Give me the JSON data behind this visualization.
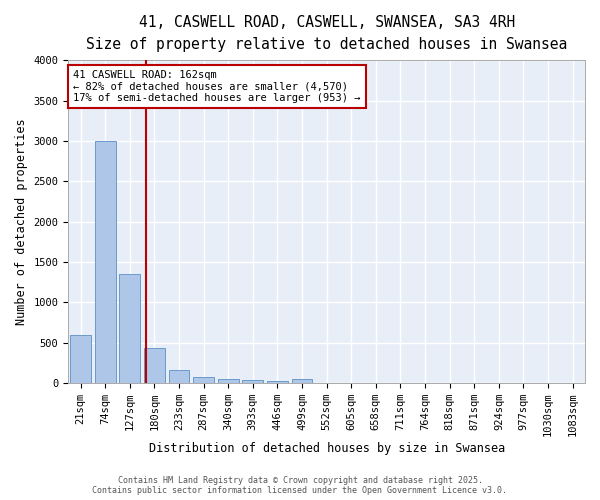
{
  "title1": "41, CASWELL ROAD, CASWELL, SWANSEA, SA3 4RH",
  "title2": "Size of property relative to detached houses in Swansea",
  "xlabel": "Distribution of detached houses by size in Swansea",
  "ylabel": "Number of detached properties",
  "categories": [
    "21sqm",
    "74sqm",
    "127sqm",
    "180sqm",
    "233sqm",
    "287sqm",
    "340sqm",
    "393sqm",
    "446sqm",
    "499sqm",
    "552sqm",
    "605sqm",
    "658sqm",
    "711sqm",
    "764sqm",
    "818sqm",
    "871sqm",
    "924sqm",
    "977sqm",
    "1030sqm",
    "1083sqm"
  ],
  "values": [
    600,
    3000,
    1350,
    430,
    155,
    75,
    45,
    35,
    30,
    50,
    0,
    0,
    0,
    0,
    0,
    0,
    0,
    0,
    0,
    0,
    0
  ],
  "bar_color": "#aec6e8",
  "bar_edge_color": "#5b8fc5",
  "background_color": "#e8eef8",
  "grid_color": "#ffffff",
  "vline_color": "#bb0000",
  "annotation_text": "41 CASWELL ROAD: 162sqm\n← 82% of detached houses are smaller (4,570)\n17% of semi-detached houses are larger (953) →",
  "annotation_box_color": "#bb0000",
  "ylim": [
    0,
    4000
  ],
  "yticks": [
    0,
    500,
    1000,
    1500,
    2000,
    2500,
    3000,
    3500,
    4000
  ],
  "footer1": "Contains HM Land Registry data © Crown copyright and database right 2025.",
  "footer2": "Contains public sector information licensed under the Open Government Licence v3.0.",
  "title_fontsize": 10.5,
  "subtitle_fontsize": 9,
  "axis_label_fontsize": 8.5,
  "tick_fontsize": 7.5,
  "footer_fontsize": 6,
  "annot_fontsize": 7.5
}
